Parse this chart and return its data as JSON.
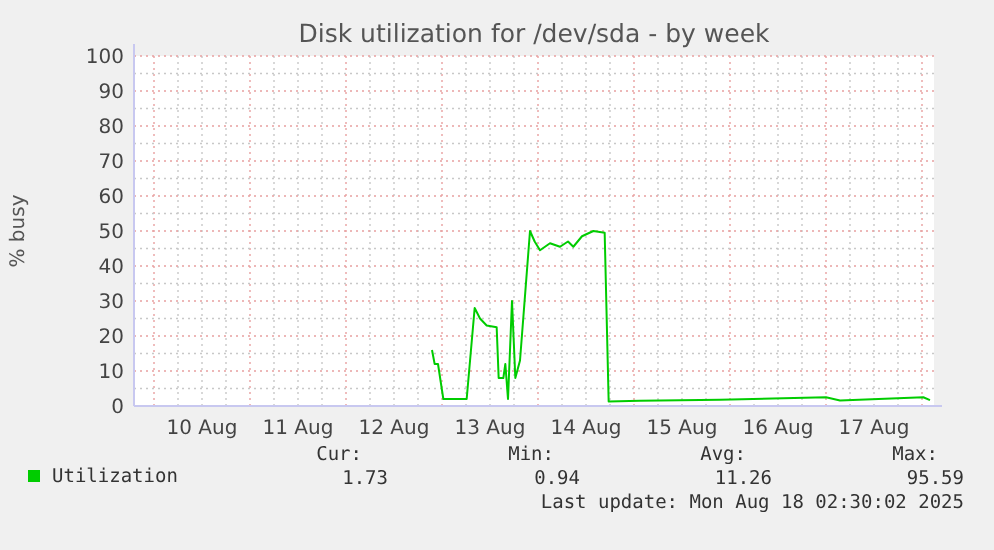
{
  "chart_data": {
    "type": "line",
    "title": "Disk utilization for /dev/sda - by week",
    "ylabel": "% busy",
    "xlim": [
      "2025-08-09T19:00",
      "2025-08-18T03:00"
    ],
    "xticks": [
      {
        "value": "2025-08-10T12:00",
        "label": "10 Aug"
      },
      {
        "value": "2025-08-11T12:00",
        "label": "11 Aug"
      },
      {
        "value": "2025-08-12T12:00",
        "label": "12 Aug"
      },
      {
        "value": "2025-08-13T12:00",
        "label": "13 Aug"
      },
      {
        "value": "2025-08-14T12:00",
        "label": "14 Aug"
      },
      {
        "value": "2025-08-15T12:00",
        "label": "15 Aug"
      },
      {
        "value": "2025-08-16T12:00",
        "label": "16 Aug"
      },
      {
        "value": "2025-08-17T12:00",
        "label": "17 Aug"
      }
    ],
    "ylim": [
      0,
      100
    ],
    "yticks": [
      0,
      10,
      20,
      30,
      40,
      50,
      60,
      70,
      80,
      90,
      100
    ],
    "grid": true,
    "legend": "bottom",
    "x": [
      "2025-08-12T21:30",
      "2025-08-12T22:10",
      "2025-08-12T23:00",
      "2025-08-13T00:20",
      "2025-08-13T06:10",
      "2025-08-13T08:10",
      "2025-08-13T09:30",
      "2025-08-13T11:10",
      "2025-08-13T13:40",
      "2025-08-13T14:10",
      "2025-08-13T15:20",
      "2025-08-13T15:50",
      "2025-08-13T16:30",
      "2025-08-13T17:30",
      "2025-08-13T18:20",
      "2025-08-13T19:30",
      "2025-08-13T22:00",
      "2025-08-13T23:10",
      "2025-08-14T00:30",
      "2025-08-14T03:00",
      "2025-08-14T05:30",
      "2025-08-14T07:30",
      "2025-08-14T08:50",
      "2025-08-14T11:00",
      "2025-08-14T13:50",
      "2025-08-14T16:40",
      "2025-08-14T17:40",
      "2025-08-15T01:30",
      "2025-08-15T21:30",
      "2025-08-17T00:00",
      "2025-08-17T03:30",
      "2025-08-18T00:20",
      "2025-08-18T02:00"
    ],
    "series": [
      {
        "name": "Utilization",
        "color": "#00cc00",
        "values": [
          16,
          12,
          12,
          2,
          2,
          28,
          25,
          23,
          22.5,
          8,
          8,
          12,
          2,
          30,
          8,
          13,
          50,
          47,
          44.5,
          46.5,
          45.5,
          47,
          45.5,
          48.5,
          50,
          49.5,
          1.3,
          1.5,
          1.8,
          2.5,
          1.6,
          2.5,
          1.7
        ]
      }
    ],
    "annotations": [
      "Cur:",
      "Min:",
      "Avg:",
      "Max:",
      "1.73",
      "0.94",
      "11.26",
      "95.59",
      "Last update: Mon Aug 18 02:30:02 2025"
    ]
  }
}
